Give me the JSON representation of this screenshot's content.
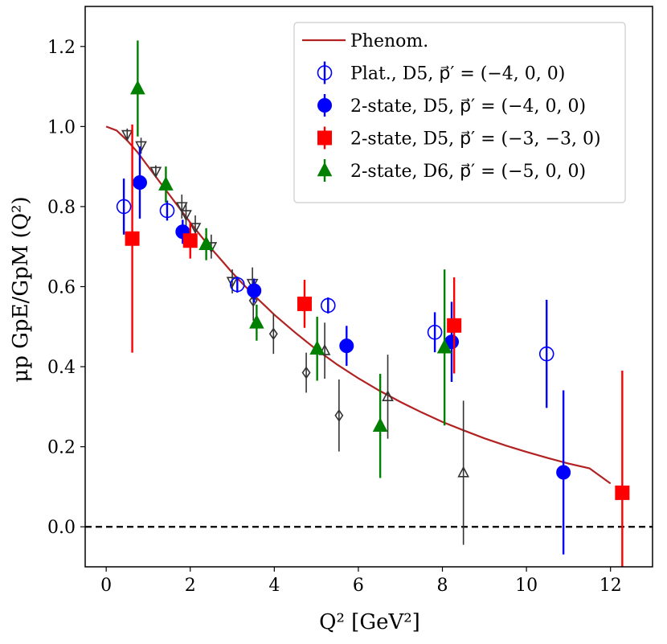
{
  "chart_data": {
    "type": "scatter",
    "xlabel": "Q² [GeV²]",
    "ylabel": "μp GpE/GpM (Q²)",
    "xlim": [
      -0.5,
      13.0
    ],
    "ylim": [
      -0.1,
      1.3
    ],
    "xticks": [
      0,
      2,
      4,
      6,
      8,
      10,
      12
    ],
    "yticks": [
      0.0,
      0.2,
      0.4,
      0.6,
      0.8,
      1.0,
      1.2
    ],
    "grid": false,
    "legend_position": "top-right",
    "reference_line": {
      "y": 0.0,
      "style": "dashed",
      "color": "#000000"
    },
    "curve": {
      "name": "Phenom.",
      "color": "#b22222",
      "x": [
        0,
        0.25,
        0.5,
        0.75,
        1,
        1.25,
        1.5,
        1.75,
        2,
        2.25,
        2.5,
        2.75,
        3,
        3.25,
        3.5,
        3.75,
        4,
        4.5,
        5,
        5.5,
        6,
        6.5,
        7,
        7.5,
        8,
        8.5,
        9,
        9.5,
        10,
        10.5,
        11,
        11.5,
        12
      ],
      "y": [
        1.0,
        0.99,
        0.965,
        0.935,
        0.9,
        0.865,
        0.83,
        0.795,
        0.76,
        0.727,
        0.695,
        0.665,
        0.635,
        0.607,
        0.58,
        0.555,
        0.53,
        0.485,
        0.443,
        0.405,
        0.371,
        0.34,
        0.312,
        0.286,
        0.262,
        0.241,
        0.221,
        0.203,
        0.187,
        0.172,
        0.158,
        0.146,
        0.108
      ]
    },
    "series": [
      {
        "name": "Plat., D5, p⃗′ = (−4, 0, 0)",
        "marker": "circle-open",
        "color": "#0000ff",
        "points": [
          {
            "x": 0.42,
            "y": 0.8,
            "err": 0.07
          },
          {
            "x": 1.45,
            "y": 0.79,
            "err": 0.025
          },
          {
            "x": 3.12,
            "y": 0.605,
            "err": 0.02
          },
          {
            "x": 5.28,
            "y": 0.553,
            "err": 0.02
          },
          {
            "x": 7.82,
            "y": 0.486,
            "err": 0.05
          },
          {
            "x": 10.48,
            "y": 0.432,
            "err": 0.135
          }
        ]
      },
      {
        "name": "2-state, D5, p⃗′ = (−4, 0, 0)",
        "marker": "circle-filled",
        "color": "#0000ff",
        "points": [
          {
            "x": 0.8,
            "y": 0.86,
            "err": 0.09
          },
          {
            "x": 1.82,
            "y": 0.737,
            "err": 0.03
          },
          {
            "x": 3.52,
            "y": 0.59,
            "err": 0.03
          },
          {
            "x": 5.72,
            "y": 0.452,
            "err": 0.05
          },
          {
            "x": 8.22,
            "y": 0.462,
            "err": 0.1
          },
          {
            "x": 10.88,
            "y": 0.136,
            "err": 0.205
          }
        ]
      },
      {
        "name": "2-state, D5, p⃗′ = (−3, −3, 0)",
        "marker": "square-filled",
        "color": "#ff0000",
        "points": [
          {
            "x": 0.62,
            "y": 0.72,
            "err": 0.285
          },
          {
            "x": 2.0,
            "y": 0.715,
            "err": 0.045
          },
          {
            "x": 4.72,
            "y": 0.557,
            "err": 0.06
          },
          {
            "x": 8.28,
            "y": 0.503,
            "err": 0.12
          },
          {
            "x": 12.28,
            "y": 0.085,
            "err": 0.305
          }
        ]
      },
      {
        "name": "2-state, D6, p⃗′ = (−5, 0, 0)",
        "marker": "triangle-up-filled",
        "color": "#008000",
        "points": [
          {
            "x": 0.75,
            "y": 1.095,
            "err": 0.12
          },
          {
            "x": 1.42,
            "y": 0.855,
            "err": 0.045
          },
          {
            "x": 2.38,
            "y": 0.706,
            "err": 0.04
          },
          {
            "x": 3.58,
            "y": 0.51,
            "err": 0.045
          },
          {
            "x": 5.02,
            "y": 0.445,
            "err": 0.08
          },
          {
            "x": 6.52,
            "y": 0.252,
            "err": 0.13
          },
          {
            "x": 8.05,
            "y": 0.448,
            "err": 0.195
          }
        ]
      },
      {
        "marker": "triangle-down-open",
        "color": "#333333",
        "points": [
          {
            "x": 0.5,
            "y": 0.98,
            "err": 0.015
          },
          {
            "x": 0.83,
            "y": 0.952,
            "err": 0.02
          },
          {
            "x": 1.18,
            "y": 0.888,
            "err": 0.015
          },
          {
            "x": 1.8,
            "y": 0.8,
            "err": 0.03
          },
          {
            "x": 1.9,
            "y": 0.78,
            "err": 0.03
          },
          {
            "x": 2.12,
            "y": 0.748,
            "err": 0.03
          },
          {
            "x": 2.5,
            "y": 0.7,
            "err": 0.03
          },
          {
            "x": 3.0,
            "y": 0.613,
            "err": 0.03
          },
          {
            "x": 3.48,
            "y": 0.608,
            "err": 0.04
          }
        ]
      },
      {
        "marker": "diamond-open",
        "color": "#333333",
        "points": [
          {
            "x": 3.5,
            "y": 0.565,
            "err": 0.05
          },
          {
            "x": 3.98,
            "y": 0.482,
            "err": 0.05
          },
          {
            "x": 4.76,
            "y": 0.385,
            "err": 0.05
          },
          {
            "x": 5.54,
            "y": 0.278,
            "err": 0.09
          }
        ]
      },
      {
        "marker": "triangle-up-open",
        "color": "#333333",
        "points": [
          {
            "x": 5.2,
            "y": 0.44,
            "err": 0.07
          },
          {
            "x": 6.7,
            "y": 0.325,
            "err": 0.105
          },
          {
            "x": 8.5,
            "y": 0.135,
            "err": 0.18
          }
        ]
      }
    ]
  }
}
